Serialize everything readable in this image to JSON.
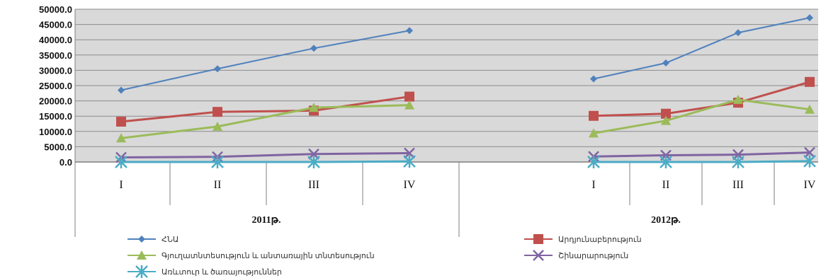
{
  "chart_data": {
    "type": "line",
    "title": "",
    "xlabel": "",
    "ylabel": "",
    "ylim": [
      0,
      50000
    ],
    "yticks": [
      "0.0",
      "5000.0",
      "10000.0",
      "15000.0",
      "20000.0",
      "25000.0",
      "30000.0",
      "35000.0",
      "40000.0",
      "45000.0",
      "50000.0"
    ],
    "grid": true,
    "legend_position": "bottom",
    "groups": [
      {
        "label": "2011թ.",
        "categories": [
          "I",
          "II",
          "III",
          "IV"
        ]
      },
      {
        "label": "2012թ.",
        "categories": [
          "I",
          "II",
          "III",
          "IV"
        ]
      }
    ],
    "series": [
      {
        "name": "ՀՆԱ",
        "color": "#4f81bd",
        "marker": "diamond",
        "values": [
          [
            23500,
            30500,
            37200,
            43000
          ],
          [
            27200,
            32400,
            42300,
            47200
          ]
        ]
      },
      {
        "name": "Արդյունաբերություն",
        "color": "#c0504d",
        "marker": "square",
        "values": [
          [
            13200,
            16400,
            16800,
            21400
          ],
          [
            15100,
            15800,
            19400,
            26200
          ]
        ]
      },
      {
        "name": "Գյուղատնտեսություն և անտառային տնտեսություն",
        "color": "#9bbb59",
        "marker": "triangle",
        "values": [
          [
            7800,
            11600,
            17800,
            18600
          ],
          [
            9400,
            13500,
            20400,
            17200
          ]
        ]
      },
      {
        "name": "Շինարարություն",
        "color": "#8064a2",
        "marker": "x",
        "values": [
          [
            1500,
            1700,
            2600,
            2900
          ],
          [
            1800,
            2200,
            2400,
            3100
          ]
        ]
      },
      {
        "name": "Առևտուր և ծառայություններ",
        "color": "#4bacc6",
        "marker": "star",
        "values": [
          [
            0,
            0,
            0,
            200
          ],
          [
            0,
            0,
            0,
            300
          ]
        ]
      }
    ]
  }
}
